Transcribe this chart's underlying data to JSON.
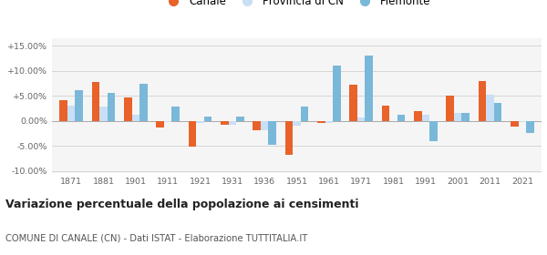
{
  "years": [
    1871,
    1881,
    1901,
    1911,
    1921,
    1931,
    1936,
    1951,
    1961,
    1971,
    1981,
    1991,
    2001,
    2011,
    2021
  ],
  "canale": [
    4.2,
    7.7,
    4.7,
    -1.3,
    -5.1,
    -0.8,
    -1.8,
    -6.8,
    -0.5,
    7.3,
    3.1,
    2.0,
    5.0,
    7.9,
    -1.1
  ],
  "provincia": [
    3.1,
    2.8,
    1.2,
    -0.2,
    -0.5,
    -0.7,
    -1.8,
    -1.0,
    -0.4,
    0.7,
    0.0,
    1.3,
    1.5,
    5.3,
    -0.3
  ],
  "piemonte": [
    6.1,
    5.5,
    7.4,
    2.9,
    0.9,
    0.9,
    -4.8,
    2.9,
    11.0,
    13.1,
    1.3,
    -4.0,
    1.6,
    3.5,
    -2.5
  ],
  "color_canale": "#e8622a",
  "color_provincia": "#c8dff5",
  "color_piemonte": "#7ab8d9",
  "bg_color": "#f5f5f5",
  "title": "Variazione percentuale della popolazione ai censimenti",
  "subtitle": "COMUNE DI CANALE (CN) - Dati ISTAT - Elaborazione TUTTITALIA.IT",
  "ylim": [
    -10.5,
    16.5
  ],
  "yticks": [
    -10.0,
    -5.0,
    0.0,
    5.0,
    10.0,
    15.0
  ],
  "ytick_labels": [
    "-10.00%",
    "-5.00%",
    "0.00%",
    "+5.00%",
    "+10.00%",
    "+15.00%"
  ]
}
